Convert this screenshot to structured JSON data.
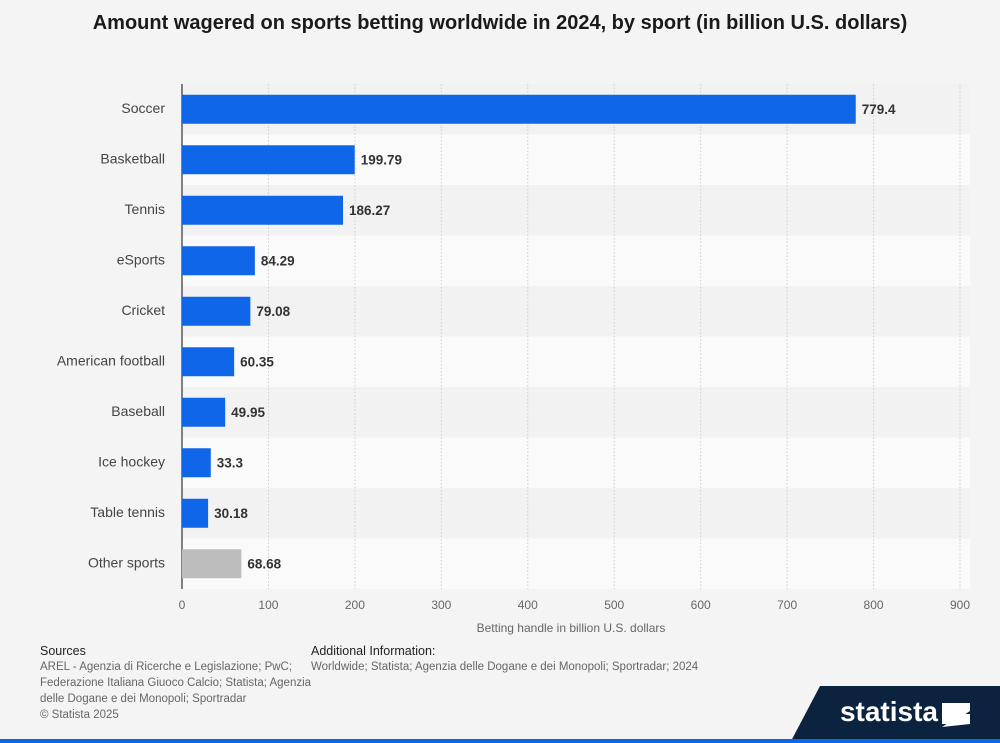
{
  "chart_data": {
    "type": "bar",
    "orientation": "horizontal",
    "title": "Amount wagered on sports betting worldwide in 2024, by sport (in billion U.S. dollars)",
    "categories": [
      "Soccer",
      "Basketball",
      "Tennis",
      "eSports",
      "Cricket",
      "American football",
      "Baseball",
      "Ice hockey",
      "Table tennis",
      "Other sports"
    ],
    "values": [
      779.4,
      199.79,
      186.27,
      84.29,
      79.08,
      60.35,
      49.95,
      33.3,
      30.18,
      68.68
    ],
    "colors": [
      "#0f66e8",
      "#0f66e8",
      "#0f66e8",
      "#0f66e8",
      "#0f66e8",
      "#0f66e8",
      "#0f66e8",
      "#0f66e8",
      "#0f66e8",
      "#bdbdbd"
    ],
    "xlabel": "Betting handle in billion U.S. dollars",
    "xlim": [
      0,
      900
    ],
    "xticks": [
      0,
      100,
      200,
      300,
      400,
      500,
      600,
      700,
      800,
      900
    ],
    "grid": true
  },
  "footer": {
    "sources_title": "Sources",
    "sources": "AREL - Agenzia di Ricerche e Legislazione; PwC; Federazione Italiana Giuoco Calcio; Statista; Agenzia delle Dogane e dei Monopoli; Sportradar",
    "copyright": "© Statista 2025",
    "additional_title": "Additional Information:",
    "additional": "Worldwide; Statista; Agenzia delle Dogane e dei Monopoli; Sportradar; 2024",
    "logo": "statista"
  }
}
